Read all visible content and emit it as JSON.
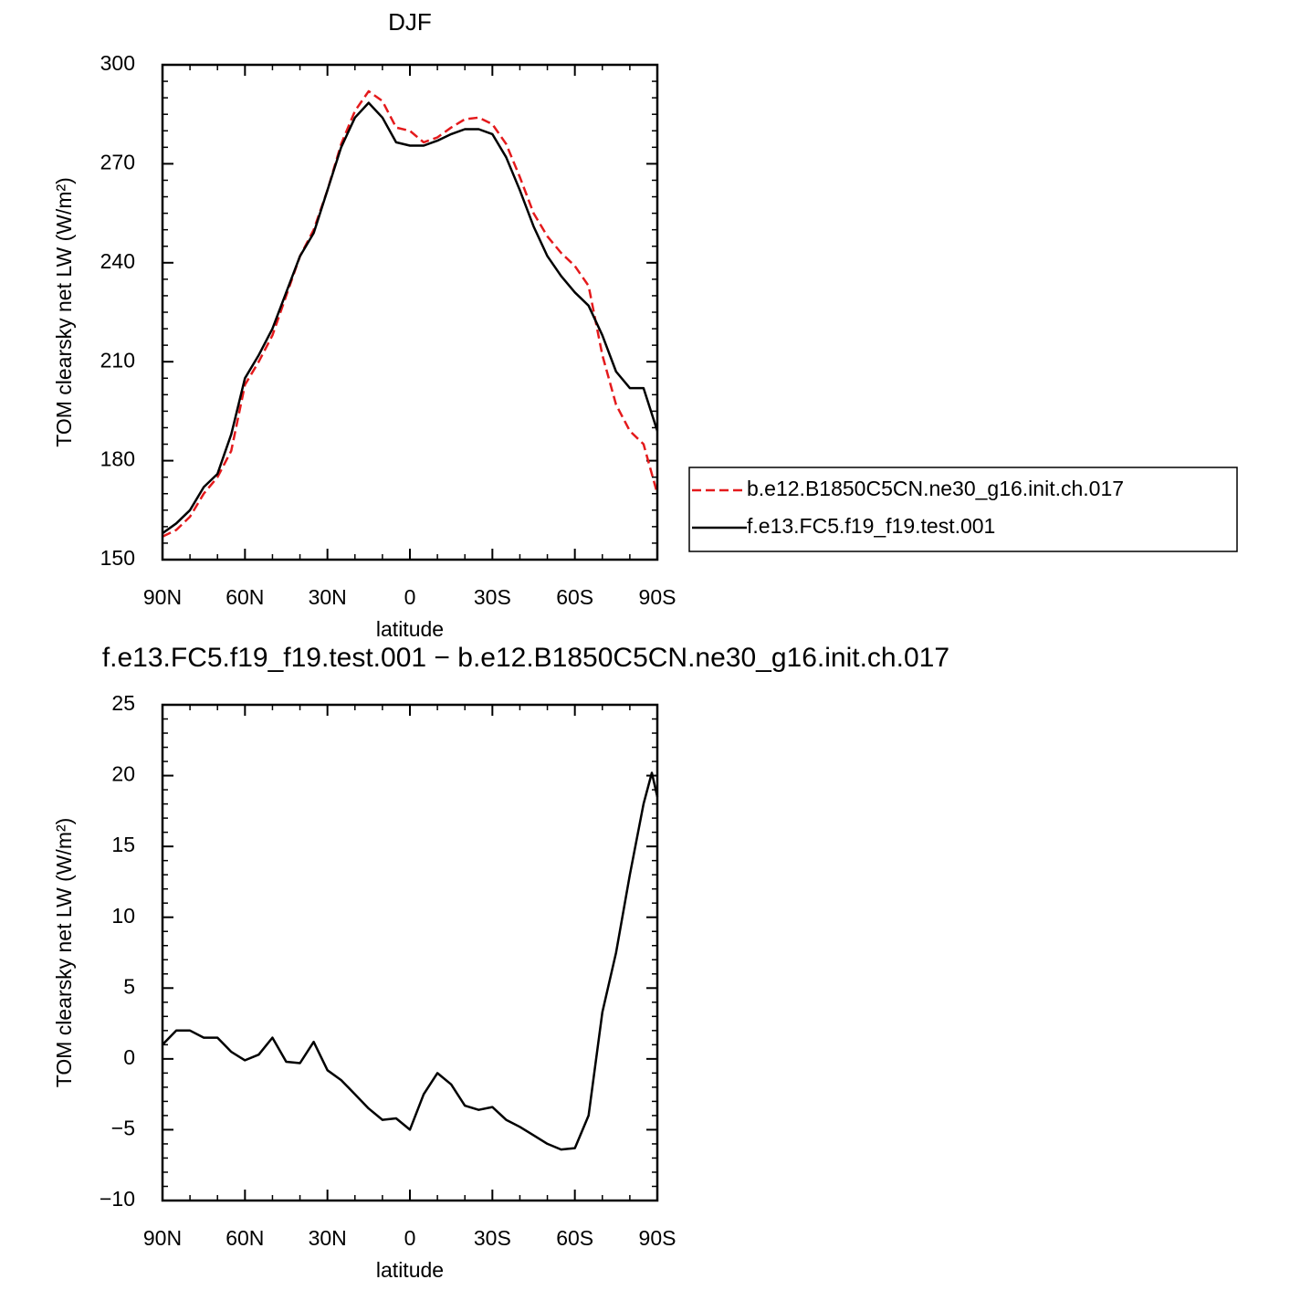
{
  "chart_data": [
    {
      "type": "line",
      "title": "DJF",
      "xlabel": "latitude",
      "ylabel": "TOM clearsky net LW (W/m²)",
      "x": [
        90,
        85,
        80,
        75,
        70,
        65,
        60,
        55,
        50,
        45,
        40,
        35,
        30,
        25,
        20,
        15,
        10,
        5,
        0,
        -5,
        -10,
        -15,
        -20,
        -25,
        -30,
        -35,
        -40,
        -45,
        -50,
        -55,
        -60,
        -65,
        -70,
        -75,
        -80,
        -85,
        -90
      ],
      "series": [
        {
          "name": "b.e12.B1850C5CN.ne30_g16.init.ch.017",
          "color": "#e41a1c",
          "style": "dashed",
          "values": [
            157,
            159,
            163,
            170,
            175,
            183,
            203,
            210,
            218,
            230,
            242,
            250,
            262,
            276,
            286,
            292,
            289,
            281,
            280,
            276.5,
            278,
            281,
            283.5,
            284,
            282,
            276,
            266,
            255,
            248,
            243,
            239,
            233,
            212,
            197,
            189,
            185,
            170
          ]
        },
        {
          "name": "f.e13.FC5.f19_f19.test.001",
          "color": "#000000",
          "style": "solid",
          "values": [
            158,
            161,
            165,
            172,
            176,
            188,
            205,
            212,
            220,
            231,
            242,
            249,
            262,
            275,
            284,
            288.5,
            284,
            276.5,
            275.5,
            275.5,
            277,
            279,
            280.5,
            280.5,
            279,
            272,
            262,
            251,
            242,
            236,
            231,
            227,
            218,
            207,
            202,
            202,
            189
          ]
        }
      ],
      "xlim": [
        90,
        -90
      ],
      "xticks": [
        {
          "value": 90,
          "label": "90N"
        },
        {
          "value": 60,
          "label": "60N"
        },
        {
          "value": 30,
          "label": "30N"
        },
        0,
        {
          "value": -30,
          "label": "30S"
        },
        {
          "value": -60,
          "label": "60S"
        },
        {
          "value": -90,
          "label": "90S"
        }
      ],
      "ylim": [
        150,
        300
      ],
      "yticks": [
        150,
        180,
        210,
        240,
        270,
        300
      ],
      "legend": "right"
    },
    {
      "type": "line",
      "title": "f.e13.FC5.f19_f19.test.001 − b.e12.B1850C5CN.ne30_g16.init.ch.017",
      "xlabel": "latitude",
      "ylabel": "TOM clearsky net LW (W/m²)",
      "x": [
        90,
        85,
        80,
        75,
        70,
        65,
        60,
        55,
        50,
        45,
        40,
        35,
        30,
        25,
        20,
        15,
        10,
        5,
        0,
        -5,
        -10,
        -15,
        -20,
        -25,
        -30,
        -35,
        -40,
        -45,
        -50,
        -55,
        -60,
        -65,
        -70,
        -75,
        -80,
        -85,
        -88,
        -90
      ],
      "color": "#000000",
      "values": [
        1,
        2,
        2,
        1.5,
        1.5,
        0.5,
        -0.1,
        0.3,
        1.5,
        -0.2,
        -0.3,
        1.2,
        -0.8,
        -1.5,
        -2.5,
        -3.5,
        -4.3,
        -4.2,
        -5,
        -2.5,
        -1,
        -1.8,
        -3.3,
        -3.6,
        -3.4,
        -4.3,
        -4.8,
        -5.4,
        -6,
        -6.4,
        -6.3,
        -4,
        3.3,
        7.5,
        13,
        18,
        20.2,
        18.5
      ],
      "xlim": [
        90,
        -90
      ],
      "xticks": [
        {
          "value": 90,
          "label": "90N"
        },
        {
          "value": 60,
          "label": "60N"
        },
        {
          "value": 30,
          "label": "30N"
        },
        0,
        {
          "value": -30,
          "label": "30S"
        },
        {
          "value": -60,
          "label": "60S"
        },
        {
          "value": -90,
          "label": "90S"
        }
      ],
      "ylim": [
        -10,
        25
      ],
      "yticks": [
        {
          "value": -10,
          "label": "−10"
        },
        {
          "value": -5,
          "label": "−5"
        },
        0,
        5,
        10,
        15,
        20,
        25
      ]
    }
  ]
}
